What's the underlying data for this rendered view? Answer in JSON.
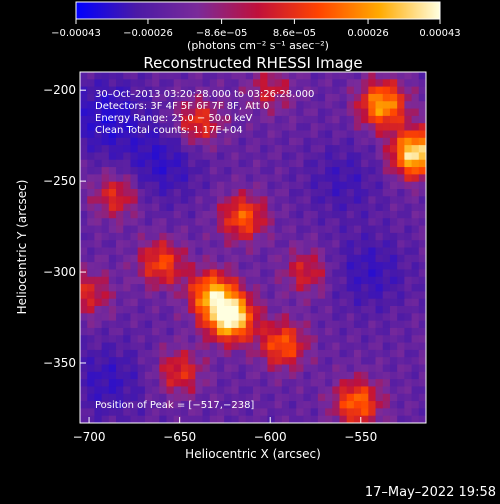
{
  "chart_data": {
    "type": "heatmap",
    "title": "Reconstructed RHESSI Image",
    "xlabel": "Heliocentric X (arcsec)",
    "ylabel": "Heliocentric Y (arcsec)",
    "xlim": [
      -705,
      -514
    ],
    "ylim": [
      -383,
      -190
    ],
    "xticks": [
      -700,
      -650,
      -600,
      -550
    ],
    "xtick_labels": [
      "−700",
      "−650",
      "−600",
      "−550"
    ],
    "yticks": [
      -200,
      -250,
      -300,
      -350
    ],
    "ytick_labels": [
      "−200",
      "−250",
      "−300",
      "−350"
    ],
    "colorbar": {
      "min": -0.00043,
      "max": 0.00043,
      "tick_values": [
        -0.00043,
        -0.00026,
        -8.6e-05,
        8.6e-05,
        0.00026,
        0.00043
      ],
      "tick_labels": [
        "−0.00043",
        "−0.00026",
        "−8.6e−05",
        "8.6e−05",
        "0.00026",
        "0.00043"
      ],
      "unit_label": "(photons cm⁻² s⁻¹ asec⁻²)",
      "colors": [
        "#0000ff",
        "#4b1aa6",
        "#7a2a9a",
        "#c0103a",
        "#ff4400",
        "#ffaa00",
        "#ffffe0"
      ]
    },
    "annotations": [
      "30–Oct–2013 03:20:28.000 to 03:26:28.000",
      "Detectors: 3F 4F 5F 6F 7F 8F, Att 0",
      "Energy Range: 25.0 − 50.0 keV",
      "Clean     Total counts: 1.17E+04"
    ],
    "peak_label": "Position of Peak = [−517,−238]",
    "peak": [
      -517,
      -238
    ],
    "sources": [
      {
        "x": -622,
        "y": -325,
        "level": 1.0
      },
      {
        "x": -520,
        "y": -235,
        "level": 0.95
      },
      {
        "x": -538,
        "y": -208,
        "level": 0.75
      },
      {
        "x": -632,
        "y": -312,
        "level": 0.7
      },
      {
        "x": -615,
        "y": -270,
        "level": 0.55
      },
      {
        "x": -660,
        "y": -295,
        "level": 0.5
      },
      {
        "x": -593,
        "y": -340,
        "level": 0.55
      },
      {
        "x": -640,
        "y": -218,
        "level": 0.45
      },
      {
        "x": -685,
        "y": -258,
        "level": 0.4
      },
      {
        "x": -552,
        "y": -372,
        "level": 0.6
      },
      {
        "x": -650,
        "y": -355,
        "level": 0.4
      },
      {
        "x": -580,
        "y": -300,
        "level": 0.35
      },
      {
        "x": -700,
        "y": -312,
        "level": 0.35
      },
      {
        "x": -600,
        "y": -200,
        "level": 0.3
      }
    ],
    "negative_sources": [
      {
        "x": -690,
        "y": -215,
        "level": 1.0
      },
      {
        "x": -660,
        "y": -240,
        "level": 0.8
      },
      {
        "x": -545,
        "y": -300,
        "level": 0.7
      },
      {
        "x": -690,
        "y": -360,
        "level": 0.7
      },
      {
        "x": -560,
        "y": -250,
        "level": 0.55
      }
    ]
  },
  "footer": {
    "timestamp": "17–May–2022 19:58"
  }
}
